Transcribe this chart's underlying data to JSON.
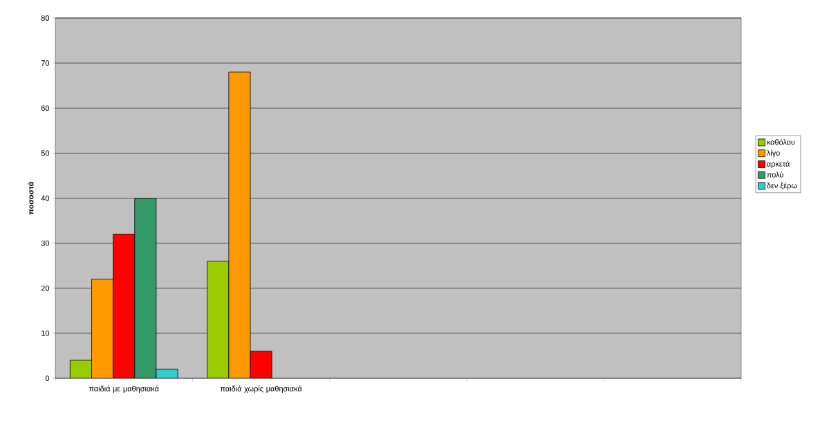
{
  "chart_data": {
    "type": "bar",
    "ylabel": "ποσοστά",
    "categories": [
      "παιδιά με μαθησιακά",
      "παιδιά χωρίς μαθησιακά",
      null,
      null,
      null
    ],
    "series": [
      {
        "name": "καθόλου",
        "color": "#99cc00",
        "values": [
          4,
          26,
          null,
          null,
          null
        ]
      },
      {
        "name": "λίγο",
        "color": "#ff9900",
        "values": [
          22,
          68,
          null,
          null,
          null
        ]
      },
      {
        "name": "αρκετά",
        "color": "#ff0000",
        "values": [
          32,
          6,
          null,
          null,
          null
        ]
      },
      {
        "name": "πολύ",
        "color": "#339966",
        "values": [
          40,
          null,
          null,
          null,
          null
        ]
      },
      {
        "name": "δεν ξέρω",
        "color": "#33cccc",
        "values": [
          2,
          null,
          null,
          null,
          null
        ]
      }
    ],
    "ylim": [
      0,
      80
    ],
    "yticks": [
      0,
      10,
      20,
      30,
      40,
      50,
      60,
      70,
      80
    ],
    "grid": "y",
    "legend": "right"
  }
}
